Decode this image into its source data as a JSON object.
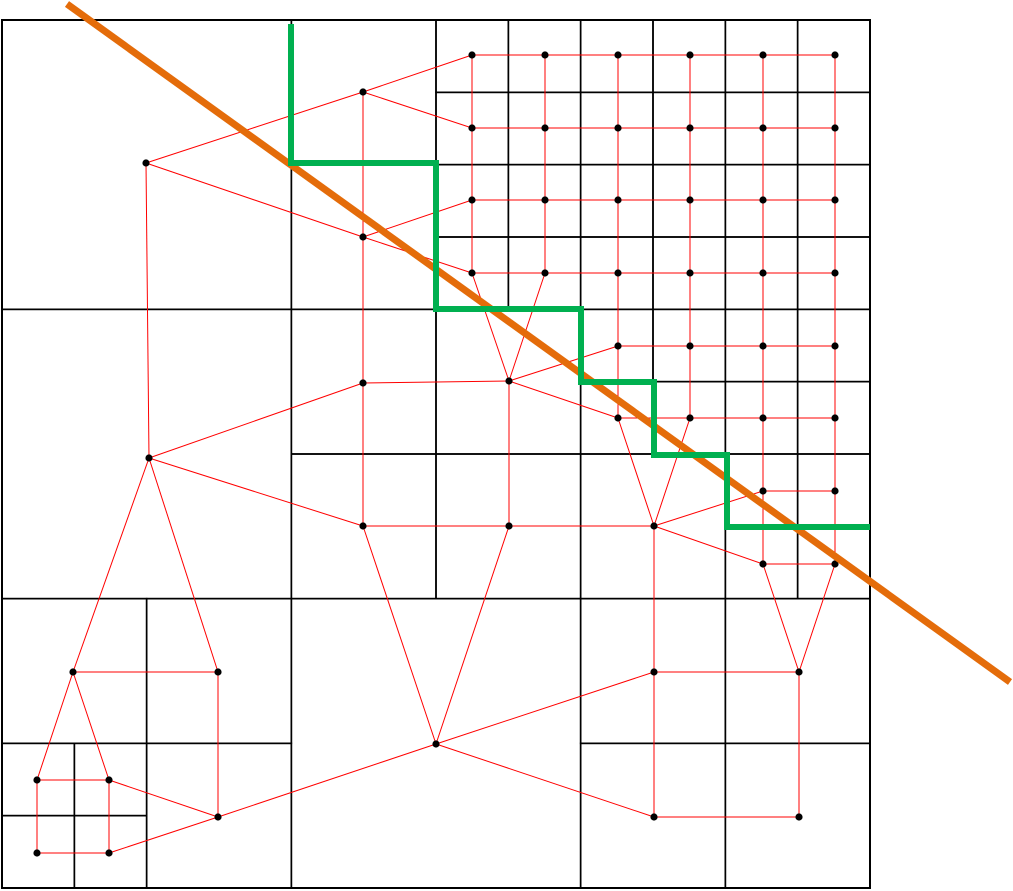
{
  "diagram": {
    "colors": {
      "background": "#ffffff",
      "cell_border": "#000000",
      "graph_edge": "#ff0000",
      "node": "#000000",
      "cut_line": "#e46c0a",
      "boundary_path": "#00b050"
    }
  }
}
